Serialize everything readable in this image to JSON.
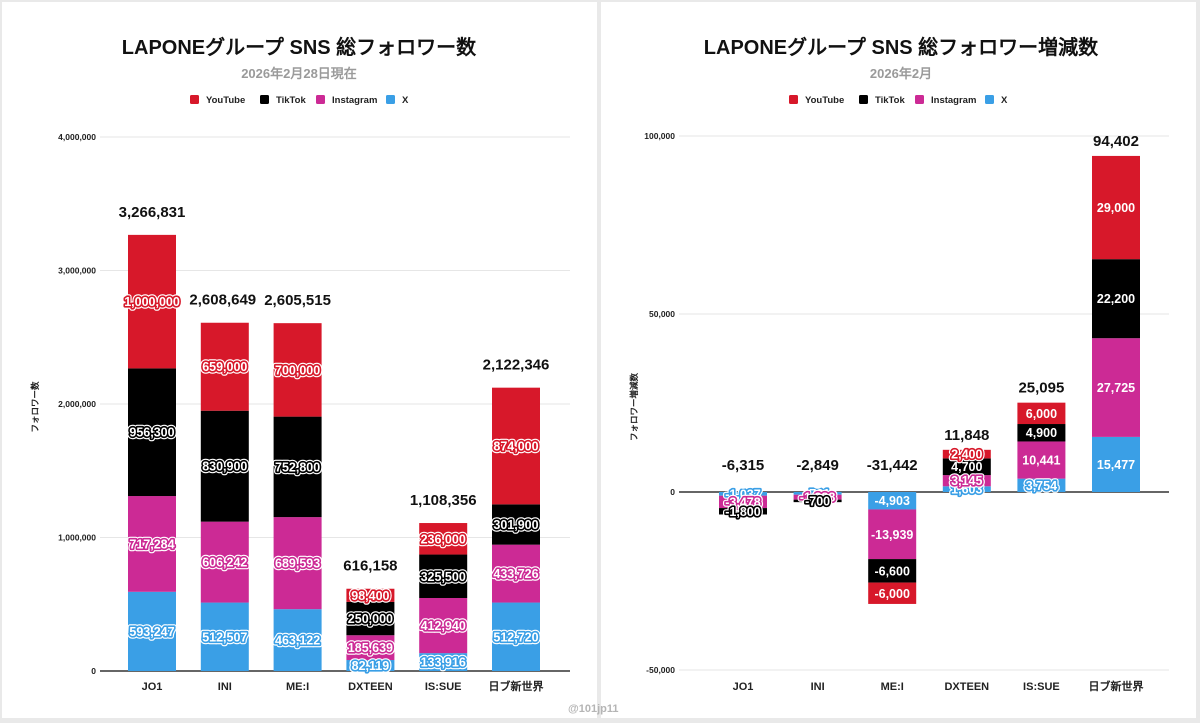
{
  "series_colors": {
    "YouTube": "#d7182a",
    "TikTok": "#000000",
    "Instagram": "#cc2a95",
    "X": "#3a9fe6"
  },
  "watermark": "@101jp11",
  "chart_data": [
    {
      "type": "bar",
      "stacked": true,
      "title": "LAPONEグループ SNS 総フォロワー数",
      "subtitle": "2026年2月28日現在",
      "xlabel": "",
      "ylabel": "フォロワー数",
      "ylim": [
        0,
        4000000
      ],
      "yticks": [
        0,
        1000000,
        2000000,
        3000000,
        4000000
      ],
      "ytick_labels": [
        "0",
        "1,000,000",
        "2,000,000",
        "3,000,000",
        "4,000,000"
      ],
      "grid": true,
      "legend": {
        "placement": "top-center",
        "entries": [
          "YouTube",
          "TikTok",
          "Instagram",
          "X"
        ]
      },
      "categories": [
        "JO1",
        "INI",
        "ME:I",
        "DXTEEN",
        "IS:SUE",
        "日ブ新世界"
      ],
      "series": [
        {
          "name": "X",
          "values": [
            593247,
            512507,
            463122,
            82119,
            133916,
            512720
          ],
          "labels": [
            "593,247",
            "512,507",
            "463,122",
            "82,119",
            "133,916",
            "512,720"
          ]
        },
        {
          "name": "Instagram",
          "values": [
            717284,
            606242,
            689593,
            185639,
            412940,
            433726
          ],
          "labels": [
            "717,284",
            "606,242",
            "689,593",
            "185,639",
            "412,940",
            "433,726"
          ]
        },
        {
          "name": "TikTok",
          "values": [
            956300,
            830900,
            752800,
            250000,
            325500,
            301900
          ],
          "labels": [
            "956,300",
            "830,900",
            "752,800",
            "250,000",
            "325,500",
            "301,900"
          ]
        },
        {
          "name": "YouTube",
          "values": [
            1000000,
            659000,
            700000,
            98400,
            236000,
            874000
          ],
          "labels": [
            "1,000,000",
            "659,000",
            "700,000",
            "98,400",
            "236,000",
            "874,000"
          ]
        }
      ],
      "totals": [
        3266831,
        2608649,
        2605515,
        616158,
        1108356,
        2122346
      ],
      "total_labels": [
        "3,266,831",
        "2,608,649",
        "2,605,515",
        "616,158",
        "1,108,356",
        "2,122,346"
      ]
    },
    {
      "type": "bar",
      "stacked": true,
      "title": "LAPONEグループ SNS 総フォロワー増減数",
      "subtitle": "2026年2月",
      "xlabel": "",
      "ylabel": "フォロワー増減数",
      "ylim": [
        -50000,
        100000
      ],
      "yticks": [
        -50000,
        0,
        50000,
        100000
      ],
      "ytick_labels": [
        "-50,000",
        "0",
        "50,000",
        "100,000"
      ],
      "grid": true,
      "legend": {
        "placement": "top-center",
        "entries": [
          "YouTube",
          "TikTok",
          "Instagram",
          "X"
        ]
      },
      "categories": [
        "JO1",
        "INI",
        "ME:I",
        "DXTEEN",
        "IS:SUE",
        "日ブ新世界"
      ],
      "series": [
        {
          "name": "X",
          "values": [
            -1037,
            -761,
            -4903,
            1603,
            3754,
            15477
          ],
          "labels": [
            "-1,037",
            "-761",
            "-4,903",
            "1,603",
            "3,754",
            "15,477"
          ]
        },
        {
          "name": "Instagram",
          "values": [
            -3478,
            -1388,
            -13939,
            3145,
            10441,
            27725
          ],
          "labels": [
            "-3,478",
            "-1,388",
            "-13,939",
            "3,145",
            "10,441",
            "27,725"
          ]
        },
        {
          "name": "TikTok",
          "values": [
            -1800,
            -700,
            -6600,
            4700,
            4900,
            22200
          ],
          "labels": [
            "-1,800",
            "-700",
            "-6,600",
            "4,700",
            "4,900",
            "22,200"
          ]
        },
        {
          "name": "YouTube",
          "values": [
            0,
            0,
            -6000,
            2400,
            6000,
            29000
          ],
          "labels": [
            "0",
            "0",
            "-6,000",
            "2,400",
            "6,000",
            "29,000"
          ]
        }
      ],
      "totals": [
        -6315,
        -2849,
        -31442,
        11848,
        25095,
        94402
      ],
      "total_labels": [
        "-6,315",
        "-2,849",
        "-31,442",
        "11,848",
        "25,095",
        "94,402"
      ]
    }
  ]
}
